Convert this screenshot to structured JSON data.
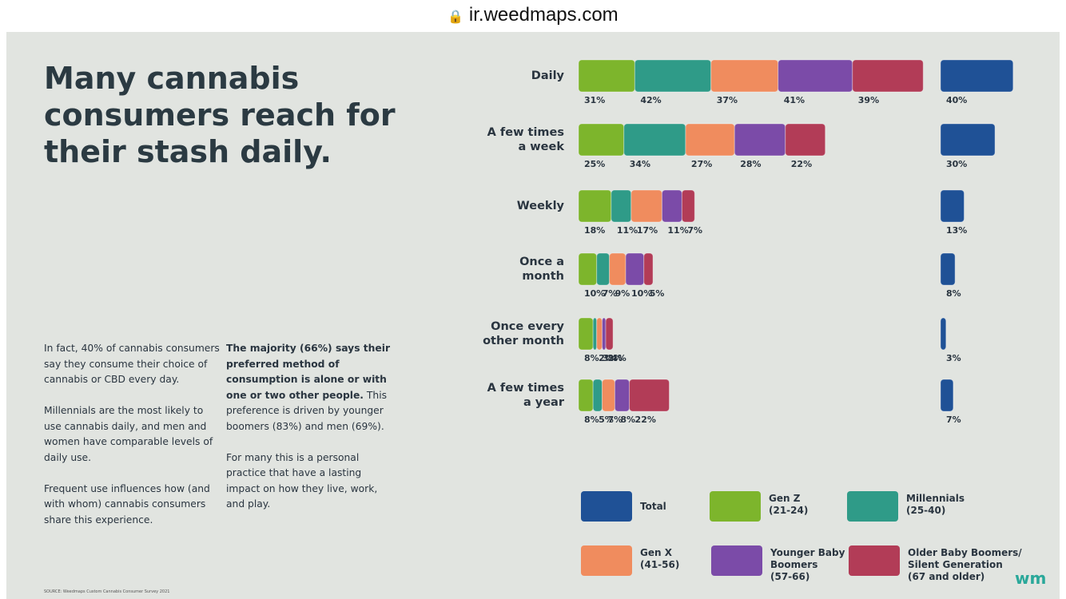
{
  "browser": {
    "url": "ir.weedmaps.com"
  },
  "headline": "Many cannabis consumers reach for their stash daily.",
  "left_column": [
    "In fact, 40% of cannabis consumers say they consume their choice of cannabis or CBD every day.",
    "Millennials are the most likely to use cannabis daily, and men and women have comparable levels of daily use.",
    "Frequent use influences how (and with whom) cannabis consumers share this experience."
  ],
  "right_column": {
    "bold": "The majority (66%) says their preferred method of consumption is alone or with one or two other people.",
    "text": "This preference is driven by younger boomers (83%) and men (69%).",
    "second": "For many this is a personal practice that have a lasting impact on how they live, work, and play."
  },
  "source": "SOURCE: Weedmaps Custom Cannabis Consumer Survey 2021",
  "logo": "wm",
  "chart_data": {
    "type": "bar",
    "categories": [
      "Daily",
      "A few times a week",
      "Weekly",
      "Once a month",
      "Once every other month",
      "A few times a year"
    ],
    "series": [
      {
        "name": "Gen Z",
        "ages": "(21-24)",
        "color": "#7db52c",
        "values": [
          31,
          25,
          18,
          10,
          8,
          8
        ],
        "value_labels": [
          "31%",
          "25%",
          "18%",
          "10%",
          "8%",
          "8%"
        ]
      },
      {
        "name": "Millennials",
        "ages": "(25-40)",
        "color": "#2f9b88",
        "values": [
          42,
          34,
          11,
          7,
          2,
          5
        ],
        "value_labels": [
          "42%",
          "34%",
          "11%",
          "7%",
          "2%",
          "5%"
        ]
      },
      {
        "name": "Gen X",
        "ages": "(41-56)",
        "color": "#f08c5e",
        "values": [
          37,
          27,
          17,
          9,
          3,
          7
        ],
        "value_labels": [
          "37%",
          "27%",
          "17%",
          "9%",
          "3%",
          "7%"
        ]
      },
      {
        "name": "Younger Baby Boomers",
        "ages": "(57-66)",
        "color": "#7b4ba8",
        "values": [
          41,
          28,
          11,
          10,
          2,
          8
        ],
        "value_labels": [
          "41%",
          "28%",
          "11%",
          "10%",
          "2%",
          "8%"
        ]
      },
      {
        "name": "Older Baby Boomers/ Silent Generation",
        "ages": "(67 and older)",
        "color": "#b23c57",
        "values": [
          39,
          22,
          7,
          5,
          4,
          22
        ],
        "value_labels": [
          "39%",
          "22%",
          "7%",
          "5%",
          "4%",
          "22%"
        ]
      },
      {
        "name": "Total",
        "color": "#1f5196",
        "values": [
          40,
          30,
          13,
          8,
          3,
          7
        ],
        "value_labels": [
          "40%",
          "30%",
          "13%",
          "8%",
          "3%",
          "7%"
        ]
      }
    ]
  }
}
